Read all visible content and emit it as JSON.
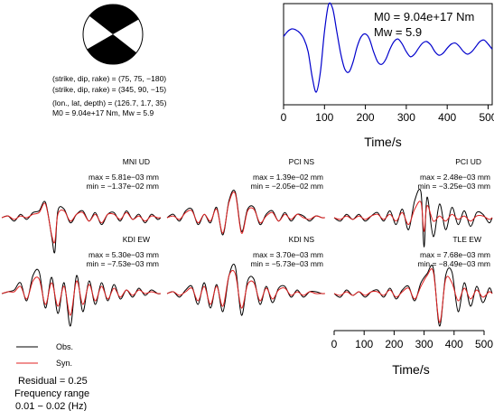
{
  "mechanism": {
    "plane1": "(strike, dip, rake) = (75, 75, −180)",
    "plane2": "(strike, dip, rake) = (345, 90, −15)",
    "location": "(lon., lat, depth) = (126.7, 1.7, 35)",
    "moment": "M0 = 9.04e+17 Nm, Mw = 5.9"
  },
  "stf": {
    "m0": "M0 = 9.04e+17 Nm",
    "mw": "Mw = 5.9",
    "xlabel": "Time/s"
  },
  "traces_xlabel": "Time/s",
  "legend": {
    "obs": "Obs.",
    "syn": "Syn."
  },
  "info": {
    "residual": "Residual = 0.25",
    "freq_label": "Frequency range",
    "freq_value": "0.01 − 0.02 (Hz)"
  },
  "colors": {
    "observed": "#000000",
    "synthetic": "#e02020",
    "stf_line": "#0000cc"
  },
  "stations": [
    {
      "name": "MNI UD",
      "max": "max = 5.81e−03 mm",
      "min": "min = −1.37e−02 mm"
    },
    {
      "name": "PCI NS",
      "max": "max = 1.39e−02 mm",
      "min": "min = −2.05e−02 mm"
    },
    {
      "name": "PCI UD",
      "max": "max = 2.48e−03 mm",
      "min": "min = −3.25e−03 mm"
    },
    {
      "name": "KDI EW",
      "max": "max = 5.30e−03 mm",
      "min": "min = −7.53e−03 mm"
    },
    {
      "name": "KDI NS",
      "max": "max = 3.70e−03 mm",
      "min": "min = −5.73e−03 mm"
    },
    {
      "name": "TLE EW",
      "max": "max = 7.68e−03 mm",
      "min": "min = −8.49e−03 mm"
    }
  ],
  "chart_data": [
    {
      "type": "line",
      "title": "",
      "xlabel": "Time/s",
      "ylabel": "",
      "xlim": [
        0,
        510
      ],
      "xticks": [
        0,
        100,
        200,
        300,
        400,
        500
      ],
      "series": [
        {
          "x": [
            0,
            10,
            20,
            30,
            40,
            50,
            60,
            70,
            80,
            90,
            100,
            110,
            120,
            130,
            140,
            150,
            160,
            170,
            180,
            190,
            200,
            210,
            220,
            230,
            240,
            250,
            260,
            270,
            280,
            290,
            300,
            310,
            320,
            330,
            340,
            350,
            360,
            370,
            380,
            390,
            400,
            410,
            420,
            430,
            440,
            450,
            460,
            470,
            480,
            490,
            500,
            510
          ],
          "y": [
            0.35,
            0.45,
            0.5,
            0.48,
            0.42,
            0.3,
            0.05,
            -0.45,
            -0.75,
            -0.35,
            0.45,
            0.98,
            0.9,
            0.45,
            0.0,
            -0.3,
            -0.35,
            -0.15,
            0.15,
            0.35,
            0.4,
            0.3,
            0.05,
            -0.15,
            -0.2,
            -0.1,
            0.1,
            0.25,
            0.3,
            0.2,
            0.05,
            -0.05,
            0.0,
            0.12,
            0.22,
            0.25,
            0.18,
            0.05,
            -0.02,
            0.02,
            0.12,
            0.2,
            0.22,
            0.15,
            0.05,
            0.0,
            0.05,
            0.15,
            0.25,
            0.28,
            0.2,
            0.1
          ]
        }
      ]
    },
    {
      "type": "line",
      "title": "MNI UD",
      "xlim": [
        0,
        510
      ],
      "series": [
        {
          "name": "Obs.",
          "x": [
            0,
            20,
            40,
            60,
            80,
            100,
            120,
            140,
            160,
            170,
            180,
            200,
            220,
            240,
            260,
            280,
            300,
            320,
            340,
            360,
            380,
            400,
            420,
            440,
            460,
            480,
            500,
            510
          ],
          "y": [
            0,
            0.05,
            -0.1,
            0.1,
            -0.05,
            0.15,
            0.2,
            0.45,
            -0.55,
            -1.0,
            0.2,
            0.25,
            -0.15,
            0.1,
            0.2,
            -0.1,
            0.15,
            -0.2,
            0.1,
            0.15,
            -0.1,
            0.2,
            -0.05,
            0.1,
            -0.15,
            0.1,
            -0.05,
            0
          ]
        },
        {
          "name": "Syn.",
          "x": [
            0,
            20,
            40,
            60,
            80,
            100,
            120,
            140,
            160,
            170,
            180,
            200,
            220,
            240,
            260,
            280,
            300,
            320,
            340,
            360,
            380,
            400,
            420,
            440,
            460,
            480,
            500,
            510
          ],
          "y": [
            0,
            0.05,
            -0.05,
            0.05,
            0.0,
            0.1,
            0.15,
            0.4,
            -0.5,
            -0.7,
            0.1,
            0.2,
            -0.1,
            0.1,
            0.15,
            -0.1,
            0.1,
            -0.15,
            0.1,
            0.1,
            -0.05,
            0.15,
            -0.05,
            0.05,
            -0.1,
            0.05,
            0.0,
            0
          ]
        }
      ]
    },
    {
      "type": "line",
      "title": "PCI NS",
      "xlim": [
        0,
        510
      ],
      "series": [
        {
          "name": "Obs.",
          "x": [
            0,
            20,
            40,
            60,
            80,
            100,
            120,
            140,
            160,
            180,
            200,
            220,
            240,
            260,
            280,
            300,
            320,
            340,
            360,
            380,
            400,
            420,
            440,
            460,
            480,
            500,
            510
          ],
          "y": [
            0,
            0.1,
            -0.1,
            0.2,
            0.25,
            -0.2,
            0.1,
            -0.15,
            0.3,
            -0.5,
            0.5,
            0.75,
            -0.4,
            0.25,
            0.3,
            -0.2,
            0.1,
            0.2,
            -0.1,
            0.15,
            -0.1,
            0.1,
            0.05,
            -0.1,
            0.05,
            0.0,
            0
          ]
        },
        {
          "name": "Syn.",
          "x": [
            0,
            20,
            40,
            60,
            80,
            100,
            120,
            140,
            160,
            180,
            200,
            220,
            240,
            260,
            280,
            300,
            320,
            340,
            360,
            380,
            400,
            420,
            440,
            460,
            480,
            500,
            510
          ],
          "y": [
            0,
            0.05,
            -0.05,
            0.15,
            0.2,
            -0.15,
            0.1,
            -0.1,
            0.25,
            -0.45,
            0.45,
            0.7,
            -0.45,
            0.2,
            0.25,
            -0.15,
            0.05,
            0.15,
            -0.1,
            0.1,
            -0.05,
            0.1,
            0.0,
            -0.05,
            0.05,
            0.0,
            0
          ]
        }
      ]
    },
    {
      "type": "line",
      "title": "PCI UD",
      "xlim": [
        0,
        510
      ],
      "xticks": [
        0,
        100,
        200,
        300,
        400,
        500
      ],
      "series": [
        {
          "name": "Obs.",
          "x": [
            0,
            20,
            40,
            60,
            80,
            100,
            120,
            140,
            160,
            180,
            200,
            220,
            240,
            260,
            280,
            290,
            300,
            320,
            340,
            360,
            380,
            400,
            420,
            440,
            460,
            480,
            500,
            510
          ],
          "y": [
            0,
            -0.1,
            0.1,
            -0.05,
            0.1,
            -0.1,
            0.05,
            0.15,
            -0.1,
            0.2,
            -0.2,
            0.25,
            -0.35,
            0.5,
            0.75,
            -0.85,
            0.6,
            -0.55,
            0.4,
            -0.35,
            0.3,
            -0.2,
            0.2,
            -0.25,
            0.15,
            0.1,
            -0.15,
            0
          ]
        },
        {
          "name": "Syn.",
          "x": [
            0,
            20,
            40,
            60,
            80,
            100,
            120,
            140,
            160,
            180,
            200,
            220,
            240,
            260,
            280,
            290,
            300,
            320,
            340,
            360,
            380,
            400,
            420,
            440,
            460,
            480,
            500,
            510
          ],
          "y": [
            0,
            -0.05,
            0.05,
            -0.05,
            0.05,
            -0.05,
            0.05,
            0.1,
            -0.05,
            0.1,
            -0.1,
            0.15,
            -0.2,
            0.25,
            0.45,
            -0.4,
            0.35,
            -0.1,
            0.05,
            -0.1,
            0.1,
            -0.05,
            0.05,
            -0.1,
            0.05,
            0.05,
            -0.05,
            0
          ]
        }
      ]
    },
    {
      "type": "line",
      "title": "KDI EW",
      "xlim": [
        0,
        510
      ],
      "series": [
        {
          "name": "Obs.",
          "x": [
            0,
            20,
            40,
            60,
            80,
            100,
            120,
            140,
            160,
            180,
            200,
            220,
            240,
            260,
            280,
            300,
            320,
            340,
            360,
            380,
            400,
            420,
            440,
            460,
            480,
            500,
            510
          ],
          "y": [
            0,
            0.05,
            0.1,
            0.3,
            -0.2,
            0.5,
            0.6,
            -0.4,
            0.45,
            -0.55,
            0.3,
            -0.9,
            0.5,
            -0.5,
            0.35,
            -0.3,
            0.3,
            -0.2,
            0.25,
            -0.15,
            0.1,
            -0.1,
            0.15,
            -0.05,
            0.1,
            0.0,
            0
          ]
        },
        {
          "name": "Syn.",
          "x": [
            0,
            20,
            40,
            60,
            80,
            100,
            120,
            140,
            160,
            180,
            200,
            220,
            240,
            260,
            280,
            300,
            320,
            340,
            360,
            380,
            400,
            420,
            440,
            460,
            480,
            500,
            510
          ],
          "y": [
            0,
            0.05,
            0.05,
            0.2,
            -0.15,
            0.35,
            0.4,
            -0.3,
            0.3,
            -0.35,
            0.2,
            -0.6,
            0.35,
            -0.3,
            0.25,
            -0.2,
            0.2,
            -0.15,
            0.15,
            -0.1,
            0.1,
            -0.05,
            0.1,
            0.0,
            0.05,
            0.0,
            0
          ]
        }
      ]
    },
    {
      "type": "line",
      "title": "KDI NS",
      "xlim": [
        0,
        510
      ],
      "series": [
        {
          "name": "Obs.",
          "x": [
            0,
            20,
            40,
            60,
            80,
            100,
            120,
            140,
            160,
            180,
            200,
            220,
            240,
            260,
            280,
            300,
            320,
            340,
            360,
            380,
            400,
            420,
            440,
            460,
            480,
            500,
            510
          ],
          "y": [
            0,
            0.05,
            -0.1,
            0.1,
            0.2,
            -0.3,
            0.3,
            -0.4,
            0.25,
            -0.5,
            0.5,
            0.75,
            -0.6,
            0.35,
            0.4,
            -0.3,
            0.2,
            -0.25,
            0.15,
            0.2,
            -0.1,
            0.1,
            -0.1,
            0.05,
            0.05,
            0.0,
            0
          ]
        },
        {
          "name": "Syn.",
          "x": [
            0,
            20,
            40,
            60,
            80,
            100,
            120,
            140,
            160,
            180,
            200,
            220,
            240,
            260,
            280,
            300,
            320,
            340,
            360,
            380,
            400,
            420,
            440,
            460,
            480,
            500,
            510
          ],
          "y": [
            0,
            0.05,
            -0.05,
            0.05,
            0.15,
            -0.2,
            0.2,
            -0.3,
            0.2,
            -0.35,
            0.5,
            0.55,
            -0.4,
            0.25,
            0.3,
            -0.2,
            0.15,
            -0.15,
            0.1,
            0.15,
            -0.05,
            0.05,
            -0.05,
            0.05,
            0.0,
            0.0,
            0
          ]
        }
      ]
    },
    {
      "type": "line",
      "title": "TLE EW",
      "xlim": [
        0,
        510
      ],
      "xticks": [
        0,
        100,
        200,
        300,
        400,
        500
      ],
      "series": [
        {
          "name": "Obs.",
          "x": [
            0,
            20,
            40,
            60,
            80,
            100,
            120,
            140,
            160,
            180,
            200,
            220,
            240,
            260,
            280,
            300,
            320,
            340,
            360,
            380,
            400,
            420,
            440,
            460,
            480,
            500,
            510
          ],
          "y": [
            0,
            -0.1,
            0.1,
            -0.05,
            0.05,
            -0.1,
            0.05,
            0.1,
            -0.1,
            0.15,
            -0.15,
            0.1,
            0.2,
            -0.2,
            0.3,
            0.55,
            0.7,
            -0.9,
            0.5,
            0.6,
            -0.5,
            0.3,
            -0.35,
            0.2,
            -0.25,
            0.15,
            0
          ]
        },
        {
          "name": "Syn.",
          "x": [
            0,
            20,
            40,
            60,
            80,
            100,
            120,
            140,
            160,
            180,
            200,
            220,
            240,
            260,
            280,
            300,
            320,
            340,
            360,
            380,
            400,
            420,
            440,
            460,
            480,
            500,
            510
          ],
          "y": [
            0,
            -0.05,
            0.05,
            -0.05,
            0.05,
            -0.05,
            0.05,
            0.05,
            -0.05,
            0.1,
            -0.1,
            0.05,
            0.15,
            -0.15,
            0.2,
            0.5,
            0.6,
            -0.8,
            0.4,
            0.3,
            -0.2,
            0.15,
            -0.15,
            0.1,
            -0.1,
            0.05,
            0
          ]
        }
      ]
    }
  ]
}
